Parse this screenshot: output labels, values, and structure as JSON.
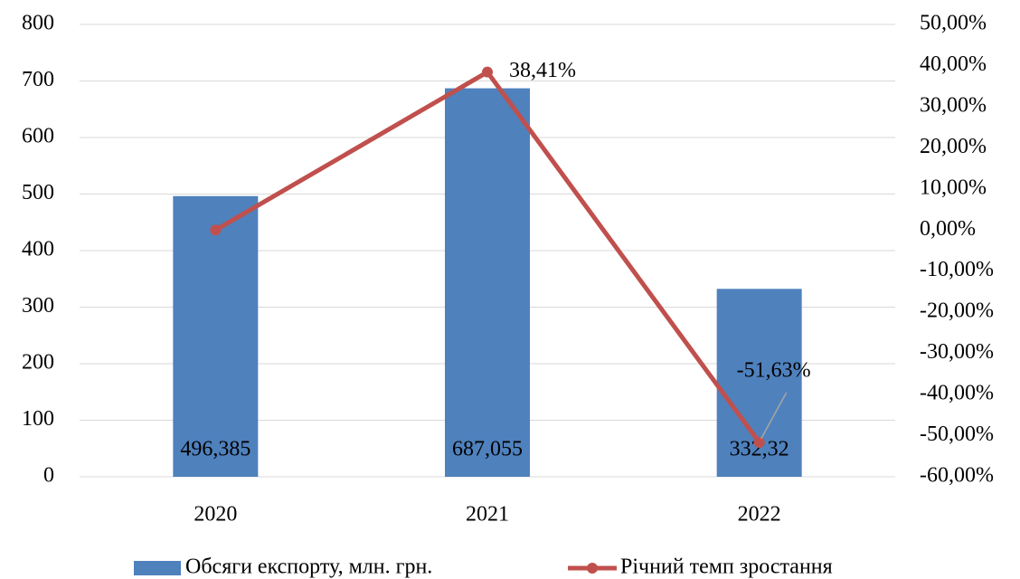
{
  "chart_data": {
    "type": "bar_line",
    "categories": [
      "2020",
      "2021",
      "2022"
    ],
    "series": [
      {
        "name": "Обсяги експорту, млн. грн.",
        "type": "bar",
        "color": "#4f81bd",
        "axis": "y",
        "values": [
          496.385,
          687.055,
          332.32
        ],
        "value_labels": [
          "496,385",
          "687,055",
          "332,32"
        ]
      },
      {
        "name": "Річний темп зростання",
        "type": "line",
        "color": "#c0504d",
        "axis": "y2",
        "values": [
          0,
          38.41,
          -51.63
        ],
        "value_labels": [
          null,
          "38,41%",
          "-51,63%"
        ]
      }
    ],
    "ylim": [
      0,
      800
    ],
    "yticks": [
      0,
      100,
      200,
      300,
      400,
      500,
      600,
      700,
      800
    ],
    "y2lim": [
      -60,
      50
    ],
    "y2ticks": [
      {
        "value": -60,
        "label": "-60,00%"
      },
      {
        "value": -50,
        "label": "-50,00%"
      },
      {
        "value": -40,
        "label": "-40,00%"
      },
      {
        "value": -30,
        "label": "-30,00%"
      },
      {
        "value": -20,
        "label": "-20,00%"
      },
      {
        "value": -10,
        "label": "-10,00%"
      },
      {
        "value": 0,
        "label": "0,00%"
      },
      {
        "value": 10,
        "label": "10,00%"
      },
      {
        "value": 20,
        "label": "20,00%"
      },
      {
        "value": 30,
        "label": "30,00%"
      },
      {
        "value": 40,
        "label": "40,00%"
      },
      {
        "value": 50,
        "label": "50,00%"
      }
    ],
    "grid": true,
    "legend": "bottom"
  }
}
